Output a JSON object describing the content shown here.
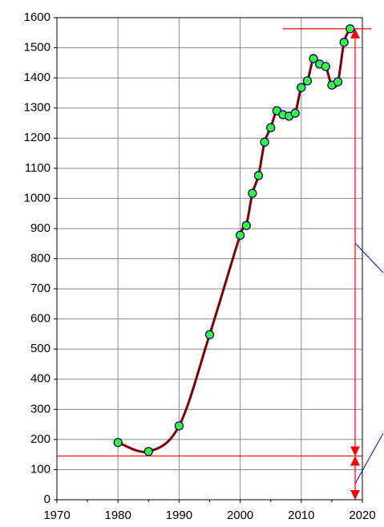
{
  "chart_data": {
    "type": "line",
    "x": [
      1980,
      1985,
      1990,
      1995,
      2000,
      2001,
      2002,
      2003,
      2004,
      2005,
      2006,
      2007,
      2008,
      2009,
      2010,
      2011,
      2012,
      2013,
      2014,
      2015,
      2016,
      2017,
      2018
    ],
    "series": [
      {
        "color": "#800000",
        "marker_color": "#33ff33",
        "values": [
          190,
          160,
          245,
          548,
          878,
          910,
          1017,
          1076,
          1187,
          1235,
          1291,
          1278,
          1273,
          1283,
          1368,
          1390,
          1464,
          1446,
          1438,
          1376,
          1387,
          1518,
          1563
        ]
      }
    ],
    "hlines": [
      145,
      1563
    ],
    "hline_color": "#ff0000",
    "xlim": [
      1970,
      2020
    ],
    "xticks": [
      1970,
      1980,
      1990,
      2000,
      2010,
      2020
    ],
    "ylim": [
      0,
      1600
    ],
    "yticks": [
      0,
      100,
      200,
      300,
      400,
      500,
      600,
      700,
      800,
      900,
      1000,
      1100,
      1200,
      1300,
      1400,
      1500,
      1600
    ],
    "grid": true
  }
}
